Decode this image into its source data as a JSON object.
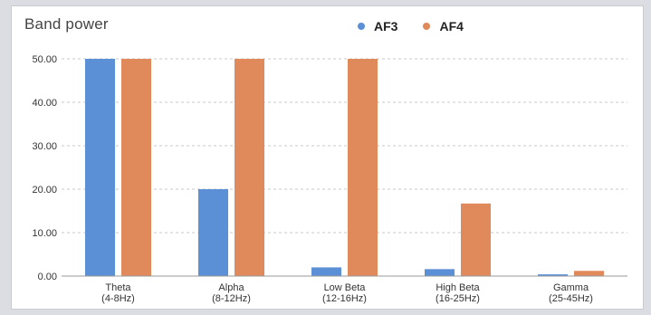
{
  "chart_data": {
    "type": "bar",
    "title": "Band power",
    "categories": [
      [
        "Theta",
        "(4-8Hz)"
      ],
      [
        "Alpha",
        "(8-12Hz)"
      ],
      [
        "Low Beta",
        "(12-16Hz)"
      ],
      [
        "High Beta",
        "(16-25Hz)"
      ],
      [
        "Gamma",
        "(25-45Hz)"
      ]
    ],
    "series": [
      {
        "name": "AF3",
        "color": "#5b8fd6",
        "values": [
          50.0,
          20.0,
          2.0,
          1.6,
          0.4
        ]
      },
      {
        "name": "AF4",
        "color": "#e08a5c",
        "values": [
          50.0,
          50.0,
          50.0,
          16.7,
          1.2
        ]
      }
    ],
    "ylim": [
      0,
      50
    ],
    "yticks": [
      "0.00",
      "10.00",
      "20.00",
      "30.00",
      "40.00",
      "50.00"
    ],
    "grid": true,
    "legend": "top-right"
  }
}
